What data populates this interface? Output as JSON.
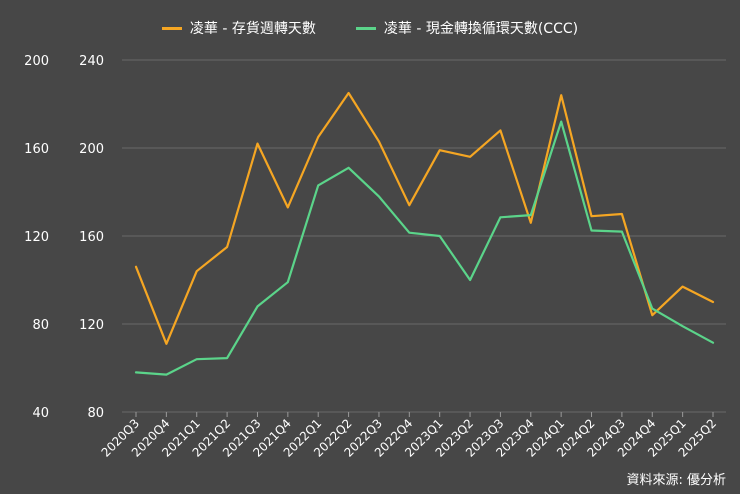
{
  "chart_data": {
    "type": "line",
    "categories": [
      "2020Q3",
      "2020Q4",
      "2021Q1",
      "2021Q2",
      "2021Q3",
      "2021Q4",
      "2022Q1",
      "2022Q2",
      "2022Q3",
      "2022Q4",
      "2023Q1",
      "2023Q2",
      "2023Q3",
      "2023Q4",
      "2024Q1",
      "2024Q2",
      "2024Q3",
      "2024Q4",
      "2025Q1",
      "2025Q2"
    ],
    "series": [
      {
        "name": "凌華 - 存貨週轉天數",
        "color": "#f5a623",
        "axis": "right",
        "values": [
          146,
          111,
          144,
          155,
          202,
          173,
          205,
          225,
          203,
          174,
          199,
          196,
          208,
          166,
          224,
          169,
          170,
          124,
          137,
          130
        ]
      },
      {
        "name": "凌華 - 現金轉換循環天數(CCC)",
        "color": "#5bd48a",
        "axis": "left",
        "values": [
          58,
          57,
          64,
          64.5,
          88,
          99,
          143,
          151,
          138,
          121.5,
          120,
          100,
          128.5,
          129.5,
          172,
          122.5,
          122,
          87,
          79,
          71.5
        ]
      }
    ],
    "y_left": {
      "ticks": [
        40,
        80,
        120,
        160,
        200
      ],
      "ylim": [
        40,
        200
      ]
    },
    "y_right": {
      "ticks": [
        80,
        120,
        160,
        200,
        240
      ],
      "ylim": [
        80,
        240
      ]
    },
    "grid": true,
    "legend_position": "top"
  },
  "source_text": "資料來源: 優分析"
}
